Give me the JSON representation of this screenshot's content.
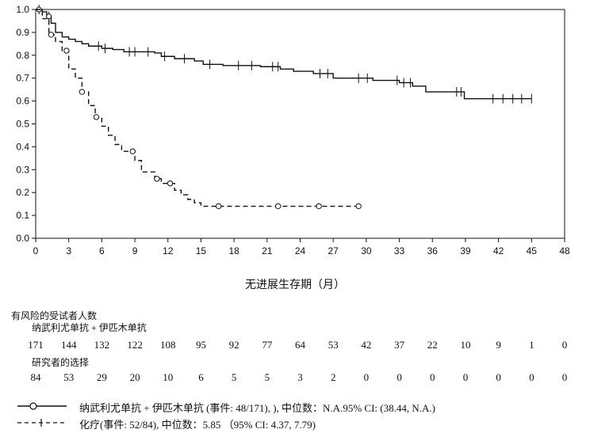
{
  "chart_data": {
    "type": "line",
    "title": "",
    "xlabel": "无进展生存期（月）",
    "ylabel": "",
    "xlim": [
      0,
      48
    ],
    "ylim": [
      0,
      1.0
    ],
    "x_ticks": [
      "0",
      "3",
      "6",
      "9",
      "12",
      "15",
      "18",
      "21",
      "24",
      "27",
      "30",
      "33",
      "36",
      "39",
      "42",
      "45",
      "48"
    ],
    "y_ticks": [
      "0.0",
      "0.1",
      "0.2",
      "0.3",
      "0.4",
      "0.5",
      "0.6",
      "0.7",
      "0.8",
      "0.9",
      "1.0"
    ],
    "grid": false,
    "series": [
      {
        "name": "纳武利尤单抗 + 伊匹木单抗",
        "style": "solid",
        "color": "#111111",
        "step_x": [
          0,
          0.6,
          1.0,
          1.4,
          1.8,
          2.4,
          3.0,
          3.6,
          4.2,
          4.8,
          6.0,
          7.0,
          8.0,
          10.8,
          11.4,
          12.6,
          14.4,
          15.2,
          17.0,
          20.4,
          22.2,
          23.4,
          25.2,
          27.0,
          30.6,
          33.0,
          34.2,
          35.4,
          38.4,
          38.9,
          45.0
        ],
        "step_y": [
          1.0,
          0.99,
          0.97,
          0.94,
          0.9,
          0.88,
          0.87,
          0.86,
          0.85,
          0.84,
          0.83,
          0.825,
          0.815,
          0.81,
          0.795,
          0.785,
          0.775,
          0.76,
          0.755,
          0.75,
          0.74,
          0.73,
          0.72,
          0.7,
          0.69,
          0.68,
          0.665,
          0.64,
          0.64,
          0.61,
          0.61
        ],
        "censor_x": [
          0.3,
          1.2,
          5.7,
          6.3,
          8.5,
          9.0,
          10.2,
          11.7,
          13.5,
          15.8,
          18.4,
          19.6,
          21.5,
          22.0,
          25.8,
          26.5,
          29.3,
          30.1,
          32.8,
          33.4,
          34.0,
          38.2,
          38.6,
          41.5,
          42.4,
          43.3,
          44.1,
          45.0
        ]
      },
      {
        "name": "化疗",
        "style": "dashed",
        "color": "#111111",
        "step_x": [
          0,
          0.6,
          1.2,
          1.8,
          2.4,
          3.0,
          3.6,
          4.2,
          4.8,
          5.4,
          6.0,
          6.6,
          7.2,
          7.8,
          9.0,
          9.6,
          10.8,
          11.4,
          12.6,
          13.2,
          13.8,
          14.4,
          15.0,
          29.4
        ],
        "step_y": [
          1.0,
          0.96,
          0.89,
          0.86,
          0.82,
          0.74,
          0.7,
          0.64,
          0.58,
          0.53,
          0.49,
          0.45,
          0.41,
          0.38,
          0.34,
          0.29,
          0.26,
          0.24,
          0.21,
          0.19,
          0.17,
          0.155,
          0.14,
          0.14
        ],
        "censor_x": [
          1.4,
          2.8,
          4.2,
          5.5,
          8.8,
          11.0,
          12.2,
          16.6,
          22.0,
          25.7,
          29.3
        ]
      }
    ],
    "risk_table": {
      "title": "有风险的受试者人数",
      "times": [
        0,
        3,
        6,
        9,
        12,
        15,
        18,
        21,
        24,
        27,
        30,
        33,
        36,
        39,
        42,
        45,
        48
      ],
      "groups": [
        {
          "label": "纳武利尤单抗 + 伊匹木单抗",
          "counts": [
            "171",
            "144",
            "132",
            "122",
            "108",
            "95",
            "92",
            "77",
            "64",
            "53",
            "42",
            "37",
            "22",
            "10",
            "9",
            "1",
            "0"
          ]
        },
        {
          "label": "研究者的选择",
          "counts": [
            "84",
            "53",
            "29",
            "20",
            "10",
            "6",
            "5",
            "5",
            "3",
            "2",
            "0",
            "0",
            "0",
            "0",
            "0",
            "0",
            "0"
          ]
        }
      ]
    },
    "legend": {
      "placement": "bottom",
      "entries": [
        {
          "symbol": "—O——",
          "text": "纳武利尤单抗 + 伊匹木单抗 (事件: 48/171), ), 中位数：N.A.95% CI: (38.44, N.A.)"
        },
        {
          "symbol": "- - - + - - -",
          "text": "化疗(事件: 52/84), 中位数：5.85 （95% CI: 4.37, 7.79)"
        }
      ]
    }
  }
}
